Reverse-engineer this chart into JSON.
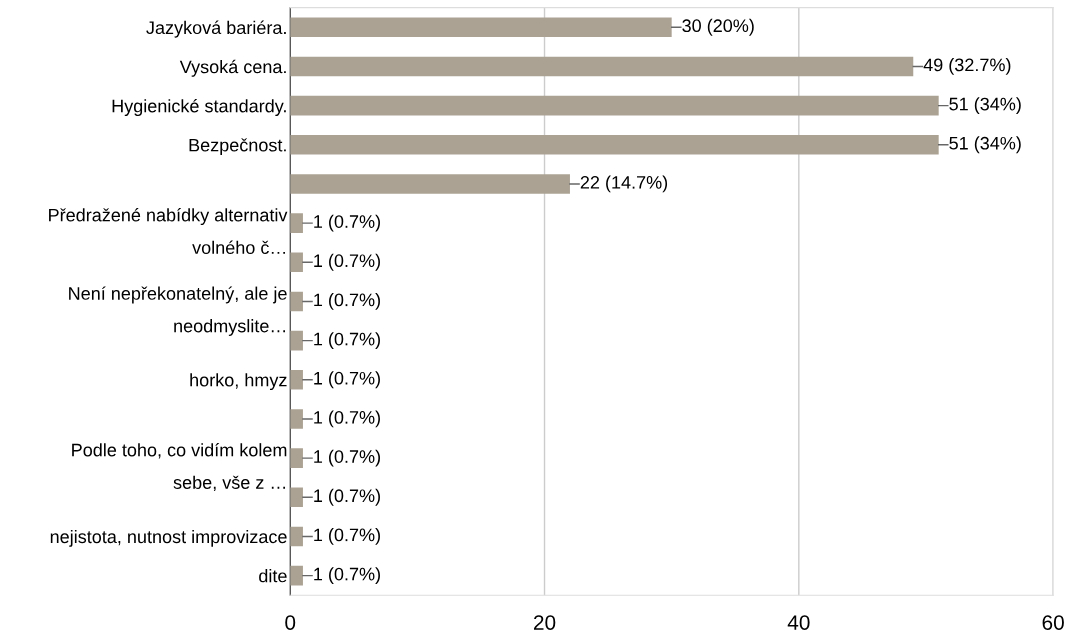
{
  "chart_data": {
    "type": "bar",
    "orientation": "horizontal",
    "categories": [
      "Jazyková bariéra.",
      "Vysoká cena.",
      "Hygienické standardy.",
      "Bezpečnost.",
      null,
      "Předražené nabídky alternativ\nvolného č…",
      null,
      "Není nepřekonatelný, ale je\nneodmyslite…",
      null,
      "horko, hmyz",
      null,
      "Podle toho, co vidím kolem\nsebe, vše z …",
      null,
      "nejistota, nutnost improvizace",
      "dite"
    ],
    "values": [
      30,
      49,
      51,
      51,
      22,
      1,
      1,
      1,
      1,
      1,
      1,
      1,
      1,
      1,
      1
    ],
    "value_labels": [
      "30 (20%)",
      "49 (32.7%)",
      "51 (34%)",
      "51 (34%)",
      "22 (14.7%)",
      "1 (0.7%)",
      "1 (0.7%)",
      "1 (0.7%)",
      "1 (0.7%)",
      "1 (0.7%)",
      "1 (0.7%)",
      "1 (0.7%)",
      "1 (0.7%)",
      "1 (0.7%)",
      "1 (0.7%)"
    ],
    "color": "#aba293",
    "xlim": [
      0,
      60
    ],
    "xticks": [
      0,
      20,
      40,
      60
    ],
    "grid": "x",
    "legend": false
  }
}
